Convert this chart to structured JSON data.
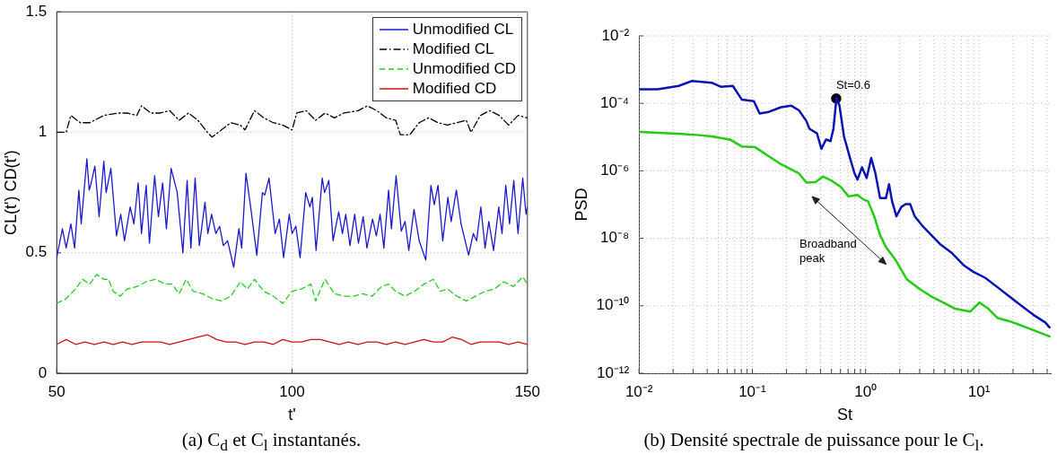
{
  "chart_data": [
    {
      "type": "line",
      "title": "(a) C$_{d}$ et C$_{l}$ instantanés.",
      "xlabel": "t'",
      "ylabel": "CL(t') CD(t')",
      "xlim": [
        50,
        150
      ],
      "xticks": [
        50,
        100,
        150
      ],
      "ylim": [
        0,
        1.5
      ],
      "yticks": [
        0,
        0.5,
        1,
        1.5
      ],
      "grid": true,
      "legend": "top right",
      "series": [
        {
          "name": "Unmodified CL",
          "color": "#1a1acc",
          "line_style": "solid",
          "x": [
            50.0,
            51.2,
            52.0,
            53.0,
            53.8,
            54.7,
            55.2,
            56.4,
            56.9,
            57.2,
            58.1,
            59.0,
            60.0,
            60.5,
            61.5,
            62.7,
            63.6,
            64.4,
            65.6,
            66.4,
            67.3,
            68.0,
            69.0,
            69.7,
            70.8,
            71.6,
            72.5,
            73.3,
            74.3,
            75.6,
            76.8,
            77.7,
            78.5,
            79.4,
            80.3,
            81.5,
            82.1,
            82.9,
            83.8,
            84.6,
            85.4,
            86.3,
            87.6,
            88.7,
            89.3,
            90.2,
            91.2,
            92.5,
            93.7,
            94.2,
            95.1,
            96.4,
            97.3,
            98.2,
            99.4,
            100.0,
            100.8,
            101.7,
            102.9,
            103.8,
            104.3,
            105.1,
            106.4,
            106.9,
            107.8,
            108.7,
            109.9,
            110.7,
            111.4,
            112.3,
            113.3,
            114.1,
            115.1,
            115.9,
            117.1,
            117.9,
            118.7,
            119.5,
            120.5,
            121.1,
            122.1,
            123.2,
            124.0,
            124.8,
            125.9,
            127.0,
            128.4,
            129.5,
            130.2,
            131.0,
            132.0,
            133.1,
            133.8,
            134.9,
            135.9,
            137.5,
            138.5,
            139.2,
            140.1,
            141.0,
            141.8,
            142.8,
            143.9,
            144.6,
            145.4,
            146.2,
            147.1,
            148.0,
            149.0,
            149.7,
            150.0
          ],
          "values": [
            0.48,
            0.6,
            0.52,
            0.62,
            0.52,
            0.76,
            0.62,
            0.89,
            0.76,
            0.78,
            0.86,
            0.65,
            0.88,
            0.75,
            0.85,
            0.57,
            0.66,
            0.55,
            0.69,
            0.62,
            0.79,
            0.58,
            0.78,
            0.54,
            0.82,
            0.65,
            0.79,
            0.6,
            0.85,
            0.75,
            0.5,
            0.8,
            0.52,
            0.81,
            0.53,
            0.71,
            0.58,
            0.66,
            0.58,
            0.61,
            0.53,
            0.55,
            0.44,
            0.6,
            0.52,
            0.83,
            0.69,
            0.49,
            0.75,
            0.74,
            0.81,
            0.58,
            0.64,
            0.48,
            0.66,
            0.58,
            0.61,
            0.48,
            0.75,
            0.69,
            0.73,
            0.51,
            0.81,
            0.75,
            0.8,
            0.55,
            0.67,
            0.58,
            0.66,
            0.53,
            0.66,
            0.54,
            0.65,
            0.52,
            0.64,
            0.57,
            0.66,
            0.52,
            0.76,
            0.6,
            0.82,
            0.59,
            0.63,
            0.51,
            0.68,
            0.55,
            0.47,
            0.78,
            0.7,
            0.78,
            0.55,
            0.73,
            0.63,
            0.76,
            0.62,
            0.49,
            0.58,
            0.55,
            0.69,
            0.52,
            0.63,
            0.51,
            0.69,
            0.58,
            0.78,
            0.62,
            0.8,
            0.58,
            0.81,
            0.66,
            0.69
          ]
        },
        {
          "name": "Modified CL",
          "color": "#000000",
          "line_style": "dashdot",
          "x": [
            50,
            52,
            53,
            55,
            57,
            60,
            63,
            65,
            67,
            68,
            70,
            72,
            74,
            76,
            78,
            80,
            82,
            83,
            85,
            87,
            89,
            90,
            92,
            94,
            96,
            98,
            100,
            101,
            103,
            105,
            107,
            109,
            111,
            114,
            116,
            118,
            120,
            122,
            123,
            125,
            127,
            129,
            131,
            133,
            135,
            137,
            138,
            140,
            142,
            144,
            146,
            148,
            150
          ],
          "values": [
            1.0,
            1.0,
            1.07,
            1.04,
            1.04,
            1.07,
            1.08,
            1.08,
            1.07,
            1.11,
            1.08,
            1.08,
            1.09,
            1.05,
            1.08,
            1.05,
            1.0,
            0.98,
            1.01,
            1.04,
            1.03,
            1.01,
            1.09,
            1.06,
            1.04,
            1.03,
            1.01,
            1.08,
            1.09,
            1.05,
            1.08,
            1.06,
            1.08,
            1.09,
            1.11,
            1.09,
            1.06,
            1.05,
            0.99,
            0.99,
            1.04,
            1.06,
            1.04,
            1.03,
            1.04,
            1.05,
            1.0,
            1.07,
            1.09,
            1.07,
            1.03,
            1.07,
            1.06
          ]
        },
        {
          "name": "Unmodified CD",
          "color": "#22cc22",
          "line_style": "dashed",
          "x": [
            50,
            52,
            54,
            55.5,
            57,
            58.5,
            60,
            61,
            62,
            63.5,
            65,
            67,
            69,
            71,
            73,
            74.5,
            76,
            77.5,
            79,
            81,
            83,
            85,
            87,
            89,
            90.5,
            92,
            94,
            96,
            98,
            100,
            102,
            104,
            105,
            107,
            109,
            111,
            113,
            115,
            117,
            119,
            120.5,
            122,
            124,
            126,
            128,
            130,
            131.5,
            133,
            135,
            137,
            139,
            141,
            143,
            145,
            147,
            149,
            150
          ],
          "values": [
            0.29,
            0.31,
            0.35,
            0.39,
            0.37,
            0.41,
            0.39,
            0.39,
            0.34,
            0.32,
            0.35,
            0.36,
            0.38,
            0.39,
            0.37,
            0.37,
            0.33,
            0.39,
            0.34,
            0.33,
            0.31,
            0.3,
            0.32,
            0.38,
            0.35,
            0.39,
            0.34,
            0.32,
            0.29,
            0.34,
            0.35,
            0.37,
            0.3,
            0.39,
            0.33,
            0.32,
            0.32,
            0.33,
            0.32,
            0.36,
            0.37,
            0.34,
            0.32,
            0.34,
            0.37,
            0.39,
            0.34,
            0.35,
            0.32,
            0.3,
            0.32,
            0.34,
            0.35,
            0.38,
            0.36,
            0.4,
            0.37
          ]
        },
        {
          "name": "Modified CD",
          "color": "#cc1111",
          "line_style": "solid",
          "x": [
            50,
            52,
            54,
            56,
            58,
            60,
            62,
            64,
            66,
            68,
            70,
            72,
            74,
            76,
            78,
            80,
            82,
            84,
            86,
            88,
            90,
            92,
            94,
            96,
            98,
            100,
            102,
            104,
            106,
            108,
            110,
            112,
            114,
            116,
            118,
            120,
            122,
            124,
            126,
            128,
            130,
            132,
            134,
            136,
            138,
            140,
            142,
            144,
            146,
            148,
            150
          ],
          "values": [
            0.12,
            0.14,
            0.12,
            0.13,
            0.12,
            0.13,
            0.12,
            0.13,
            0.12,
            0.13,
            0.13,
            0.13,
            0.12,
            0.13,
            0.14,
            0.15,
            0.16,
            0.14,
            0.13,
            0.13,
            0.12,
            0.13,
            0.13,
            0.12,
            0.14,
            0.13,
            0.13,
            0.14,
            0.14,
            0.13,
            0.12,
            0.13,
            0.12,
            0.13,
            0.13,
            0.12,
            0.13,
            0.12,
            0.13,
            0.14,
            0.13,
            0.13,
            0.15,
            0.14,
            0.12,
            0.13,
            0.13,
            0.13,
            0.12,
            0.13,
            0.12
          ]
        }
      ]
    },
    {
      "type": "line",
      "title": "(b) Densité spectrale de puissance pour le C$_{l}$.",
      "xlabel": "St",
      "ylabel": "PSD",
      "log": "xy",
      "xlim": [
        0.01,
        43
      ],
      "xticks": [
        {
          "value": 0.01,
          "label": "10⁻²"
        },
        {
          "value": 0.02,
          "label": null
        },
        {
          "value": 0.03,
          "label": null
        },
        {
          "value": 0.04,
          "label": null
        },
        {
          "value": 0.05,
          "label": null
        },
        {
          "value": 0.06,
          "label": null
        },
        {
          "value": 0.07,
          "label": null
        },
        {
          "value": 0.08,
          "label": null
        },
        {
          "value": 0.09,
          "label": null
        },
        {
          "value": 0.1,
          "label": "10⁻¹"
        },
        {
          "value": 0.2,
          "label": null
        },
        {
          "value": 0.3,
          "label": null
        },
        {
          "value": 0.4,
          "label": null
        },
        {
          "value": 0.5,
          "label": null
        },
        {
          "value": 0.6,
          "label": null
        },
        {
          "value": 0.7,
          "label": null
        },
        {
          "value": 0.8,
          "label": null
        },
        {
          "value": 0.9,
          "label": null
        },
        {
          "value": 1,
          "label": "10⁰"
        },
        {
          "value": 2,
          "label": null
        },
        {
          "value": 3,
          "label": null
        },
        {
          "value": 4,
          "label": null
        },
        {
          "value": 5,
          "label": null
        },
        {
          "value": 6,
          "label": null
        },
        {
          "value": 7,
          "label": null
        },
        {
          "value": 8,
          "label": null
        },
        {
          "value": 9,
          "label": null
        },
        {
          "value": 10,
          "label": "10¹"
        },
        {
          "value": 20,
          "label": null
        },
        {
          "value": 30,
          "label": null
        },
        {
          "value": 40,
          "label": null
        }
      ],
      "ylim": [
        1e-12,
        0.01
      ],
      "yticks": [
        {
          "value": 1e-12,
          "label": "10⁻¹²"
        },
        {
          "value": 1e-10,
          "label": "10⁻¹⁰"
        },
        {
          "value": 1e-08,
          "label": "10⁻⁸"
        },
        {
          "value": 1e-06,
          "label": "10⁻⁶"
        },
        {
          "value": 0.0001,
          "label": "10⁻⁴"
        },
        {
          "value": 0.01,
          "label": "10⁻²"
        }
      ],
      "grid": true,
      "annotations": [
        {
          "text": "St=0.6",
          "x": 0.55,
          "y": 0.00014
        },
        "Broadband peak"
      ],
      "series": [
        {
          "color": "#0a14b4",
          "line_style": "solid",
          "x": [
            0.01,
            0.0146,
            0.0224,
            0.0294,
            0.0438,
            0.0526,
            0.0673,
            0.0807,
            0.103,
            0.116,
            0.14,
            0.179,
            0.221,
            0.258,
            0.3,
            0.319,
            0.372,
            0.407,
            0.447,
            0.49,
            0.52,
            0.553,
            0.588,
            0.644,
            0.728,
            0.798,
            0.848,
            0.929,
            1.02,
            1.12,
            1.22,
            1.34,
            1.51,
            1.61,
            1.71,
            1.87,
            2.06,
            2.25,
            2.47,
            2.71,
            3.15,
            3.79,
            4.55,
            5.81,
            7.41,
            8.91,
            11.4,
            14.5,
            18.5,
            23.7,
            30.2,
            38.5,
            42
          ],
          "values": [
            0.00026,
            0.00026,
            0.00033,
            0.00046,
            0.00041,
            0.00031,
            0.00033,
            0.00013,
            0.000117,
            5e-05,
            5.6e-05,
            7.7e-05,
            8.5e-05,
            6.2e-05,
            3e-05,
            1.77e-05,
            1.29e-05,
            4.5e-06,
            8.5e-06,
            7.6e-06,
            1.77e-05,
            0.000144,
            8.5e-05,
            1.05e-05,
            2.4e-06,
            8.4e-07,
            5.5e-07,
            1.28e-06,
            6.1e-07,
            2.4e-06,
            8.4e-07,
            1.57e-07,
            1.57e-07,
            4e-07,
            1.27e-07,
            4.5e-08,
            8.4e-08,
            1.03e-07,
            1.03e-07,
            4.5e-08,
            2.4e-08,
            1.26e-08,
            6.7e-09,
            3.6e-09,
            1.55e-09,
            1.02e-09,
            6.7e-10,
            3.6e-10,
            1.9e-10,
            1.01e-10,
            5.4e-11,
            3.2e-11,
            2.3e-11
          ]
        },
        {
          "color": "#22cc11",
          "line_style": "solid",
          "x": [
            0.01,
            0.0198,
            0.0323,
            0.0438,
            0.0632,
            0.0807,
            0.106,
            0.14,
            0.179,
            0.215,
            0.258,
            0.3,
            0.361,
            0.42,
            0.505,
            0.606,
            0.706,
            0.848,
            0.957,
            1.05,
            1.19,
            1.34,
            1.51,
            1.82,
            2.32,
            2.97,
            3.79,
            4.83,
            6.17,
            8.37,
            10.1,
            12.1,
            14.5,
            18.5,
            23.7,
            30.2,
            38.5,
            42
          ],
          "values": [
            1.43e-05,
            1.29e-05,
            1.16e-05,
            1.05e-05,
            8.5e-06,
            5.3e-06,
            5e-06,
            2.7e-06,
            1.58e-06,
            1.15e-06,
            8.4e-07,
            4.5e-07,
            4.6e-07,
            6.8e-07,
            5e-07,
            3.3e-07,
            1.75e-07,
            1.94e-07,
            1.41e-07,
            1.27e-07,
            4.5e-08,
            1.26e-08,
            5.5e-09,
            2.4e-09,
            6e-10,
            3.2e-10,
            1.9e-10,
            1.25e-10,
            8.2e-11,
            6.7e-11,
            1.25e-10,
            8.2e-11,
            4.4e-11,
            3.5e-11,
            2.6e-11,
            1.9e-11,
            1.38e-11,
            1.24e-11
          ]
        },
        {
          "type": "scatter",
          "color": "#000000",
          "marker": "circle",
          "x": [
            0.55
          ],
          "values": [
            0.00014
          ]
        }
      ]
    }
  ]
}
